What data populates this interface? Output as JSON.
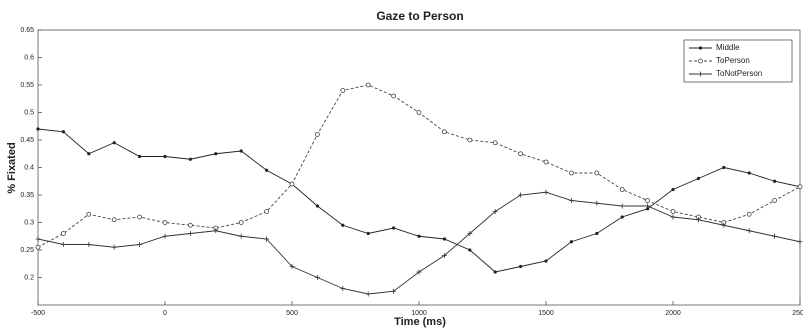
{
  "chart_data": {
    "type": "line",
    "title": "Gaze to Person",
    "x_label": "Time (ms)",
    "y_label": "% Fixated",
    "x": [
      -500,
      -400,
      -300,
      -200,
      -100,
      0,
      100,
      200,
      300,
      400,
      500,
      600,
      700,
      800,
      900,
      1000,
      1100,
      1200,
      1300,
      1400,
      1500,
      1600,
      1700,
      1800,
      1900,
      2000,
      2100,
      2200,
      2300,
      2400,
      2500
    ],
    "series": [
      {
        "name": "Middle",
        "color": "#222222",
        "marker": "dot",
        "dash": false,
        "values": [
          0.47,
          0.465,
          0.425,
          0.445,
          0.42,
          0.42,
          0.415,
          0.425,
          0.43,
          0.395,
          0.37,
          0.33,
          0.295,
          0.28,
          0.29,
          0.275,
          0.27,
          0.25,
          0.21,
          0.22,
          0.23,
          0.265,
          0.28,
          0.31,
          0.325,
          0.36,
          0.38,
          0.4,
          0.39,
          0.375,
          0.365
        ]
      },
      {
        "name": "ToPerson",
        "color": "#444444",
        "marker": "circle",
        "dash": true,
        "values": [
          0.255,
          0.28,
          0.315,
          0.305,
          0.31,
          0.3,
          0.295,
          0.29,
          0.3,
          0.32,
          0.37,
          0.46,
          0.54,
          0.55,
          0.53,
          0.5,
          0.465,
          0.45,
          0.445,
          0.425,
          0.41,
          0.39,
          0.39,
          0.36,
          0.34,
          0.32,
          0.31,
          0.3,
          0.315,
          0.34,
          0.365
        ]
      },
      {
        "name": "ToNotPerson",
        "color": "#333333",
        "marker": "plus",
        "dash": false,
        "values": [
          0.27,
          0.26,
          0.26,
          0.255,
          0.26,
          0.275,
          0.28,
          0.285,
          0.275,
          0.27,
          0.22,
          0.2,
          0.18,
          0.17,
          0.175,
          0.21,
          0.24,
          0.28,
          0.32,
          0.35,
          0.355,
          0.34,
          0.335,
          0.33,
          0.33,
          0.31,
          0.305,
          0.295,
          0.285,
          0.275,
          0.265
        ]
      }
    ],
    "xlim": [
      -500,
      2500
    ],
    "xticks": [
      -500,
      0,
      500,
      1000,
      1500,
      2000,
      2500
    ],
    "ylim": [
      0.15,
      0.65
    ],
    "yticks": [
      0.2,
      0.25,
      0.3,
      0.35,
      0.4,
      0.45,
      0.5,
      0.55,
      0.6,
      0.65
    ],
    "legend": "top-right",
    "grid": false
  }
}
